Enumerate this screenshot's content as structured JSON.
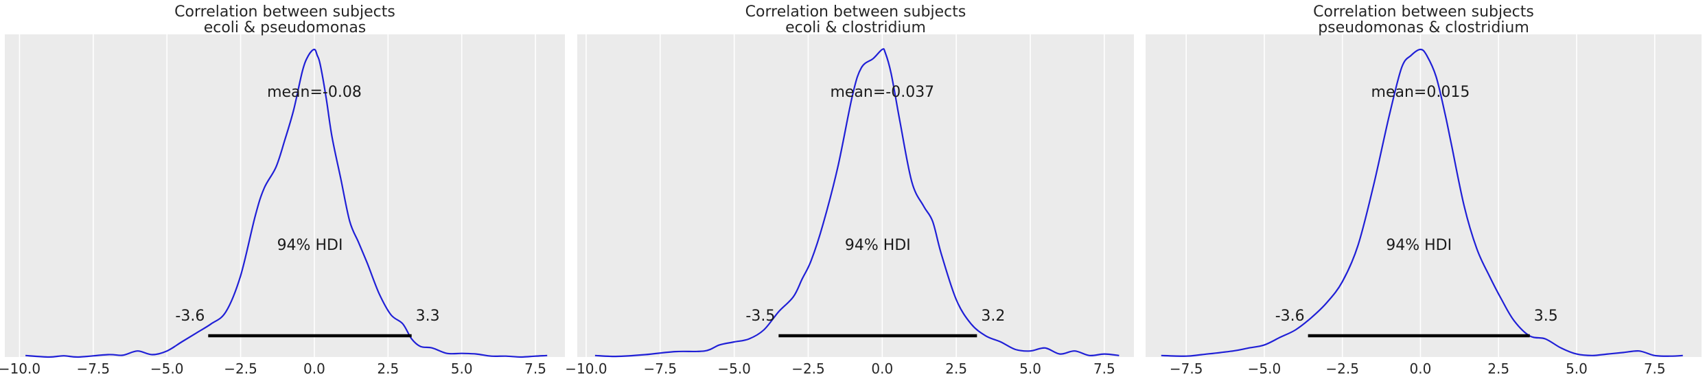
{
  "chart_data": [
    {
      "type": "area",
      "title_line1": "Correlation between subjects",
      "title_line2": "ecoli & pseudomonas",
      "mean_label": "mean=-0.08",
      "hdi_label": "94% HDI",
      "hdi_low_label": "-3.6",
      "hdi_high_label": "3.3",
      "hdi": [
        -3.6,
        3.3
      ],
      "xlim": [
        -10.5,
        8.5
      ],
      "ylim": [
        0,
        1.07
      ],
      "grid": true,
      "xticks": [
        -10.0,
        -7.5,
        -5.0,
        -2.5,
        0.0,
        2.5,
        5.0,
        7.5
      ],
      "xtick_labels": [
        "−10.0",
        "−7.5",
        "−5.0",
        "−2.5",
        "0.0",
        "2.5",
        "5.0",
        "7.5"
      ],
      "line_color": "#1f1fd6",
      "x": [
        -9.8,
        -9.0,
        -8.5,
        -8.0,
        -7.0,
        -6.5,
        -6.0,
        -5.5,
        -5.0,
        -4.5,
        -4.0,
        -3.5,
        -3.0,
        -2.5,
        -2.0,
        -1.7,
        -1.3,
        -1.0,
        -0.7,
        -0.4,
        -0.2,
        0.0,
        0.1,
        0.2,
        0.4,
        0.6,
        0.9,
        1.2,
        1.5,
        1.8,
        2.2,
        2.6,
        3.0,
        3.3,
        3.6,
        4.0,
        4.5,
        5.0,
        5.5,
        6.0,
        6.5,
        7.0,
        7.5,
        7.9
      ],
      "y": [
        0.005,
        0.0,
        0.004,
        0.0,
        0.008,
        0.006,
        0.02,
        0.008,
        0.02,
        0.05,
        0.08,
        0.11,
        0.15,
        0.27,
        0.47,
        0.56,
        0.63,
        0.72,
        0.82,
        0.95,
        1.0,
        1.02,
        1.0,
        0.97,
        0.86,
        0.73,
        0.59,
        0.45,
        0.38,
        0.31,
        0.21,
        0.14,
        0.11,
        0.06,
        0.035,
        0.03,
        0.012,
        0.012,
        0.01,
        0.003,
        0.003,
        0.0,
        0.003,
        0.005
      ]
    },
    {
      "type": "area",
      "title_line1": "Correlation between subjects",
      "title_line2": "ecoli & clostridium",
      "mean_label": "mean=-0.037",
      "hdi_label": "94% HDI",
      "hdi_low_label": "-3.5",
      "hdi_high_label": "3.2",
      "hdi": [
        -3.5,
        3.2
      ],
      "xlim": [
        -10.3,
        8.5
      ],
      "ylim": [
        0,
        1.07
      ],
      "grid": true,
      "xticks": [
        -10.0,
        -7.5,
        -5.0,
        -2.5,
        0.0,
        2.5,
        5.0,
        7.5
      ],
      "xtick_labels": [
        "−10.0",
        "−7.5",
        "−5.0",
        "−2.5",
        "0.0",
        "2.5",
        "5.0",
        "7.5"
      ],
      "line_color": "#1f1fd6",
      "x": [
        -9.7,
        -9.0,
        -8.0,
        -7.0,
        -6.0,
        -5.5,
        -5.0,
        -4.5,
        -4.0,
        -3.5,
        -3.0,
        -2.7,
        -2.4,
        -2.0,
        -1.5,
        -1.0,
        -0.7,
        -0.3,
        0.0,
        0.1,
        0.3,
        0.6,
        1.0,
        1.4,
        1.7,
        2.0,
        2.5,
        3.0,
        3.5,
        4.0,
        4.5,
        5.0,
        5.5,
        6.0,
        6.5,
        7.0,
        7.5,
        8.0
      ],
      "y": [
        0.005,
        0.002,
        0.008,
        0.018,
        0.02,
        0.04,
        0.05,
        0.06,
        0.09,
        0.15,
        0.2,
        0.26,
        0.32,
        0.44,
        0.63,
        0.87,
        0.96,
        0.99,
        1.02,
        1.01,
        0.94,
        0.78,
        0.58,
        0.5,
        0.45,
        0.34,
        0.19,
        0.11,
        0.07,
        0.05,
        0.025,
        0.02,
        0.03,
        0.01,
        0.02,
        0.005,
        0.01,
        0.005
      ]
    },
    {
      "type": "area",
      "title_line1": "Correlation between subjects",
      "title_line2": "pseudomonas & clostridium",
      "mean_label": "mean=0.015",
      "hdi_label": "94% HDI",
      "hdi_low_label": "-3.6",
      "hdi_high_label": "3.5",
      "hdi": [
        -3.6,
        3.5
      ],
      "xlim": [
        -8.8,
        9.0
      ],
      "ylim": [
        0,
        1.07
      ],
      "grid": true,
      "xticks": [
        -7.5,
        -5.0,
        -2.5,
        0.0,
        2.5,
        5.0,
        7.5
      ],
      "xtick_labels": [
        "−7.5",
        "−5.0",
        "−2.5",
        "0.0",
        "2.5",
        "5.0",
        "7.5"
      ],
      "line_color": "#1f1fd6",
      "x": [
        -8.3,
        -7.5,
        -7.0,
        -6.0,
        -5.5,
        -5.0,
        -4.5,
        -4.0,
        -3.5,
        -3.0,
        -2.5,
        -2.0,
        -1.5,
        -1.0,
        -0.6,
        -0.3,
        0.0,
        0.2,
        0.5,
        0.8,
        1.0,
        1.4,
        1.8,
        2.2,
        2.6,
        3.0,
        3.5,
        4.0,
        4.5,
        5.0,
        5.5,
        6.0,
        6.5,
        7.0,
        7.5,
        8.0,
        8.4
      ],
      "y": [
        0.005,
        0.003,
        0.008,
        0.02,
        0.03,
        0.04,
        0.065,
        0.09,
        0.13,
        0.18,
        0.25,
        0.37,
        0.57,
        0.8,
        0.96,
        1.0,
        1.02,
        1.0,
        0.93,
        0.8,
        0.7,
        0.5,
        0.36,
        0.27,
        0.19,
        0.12,
        0.07,
        0.06,
        0.03,
        0.01,
        0.005,
        0.01,
        0.015,
        0.02,
        0.005,
        0.003,
        0.005
      ]
    }
  ]
}
